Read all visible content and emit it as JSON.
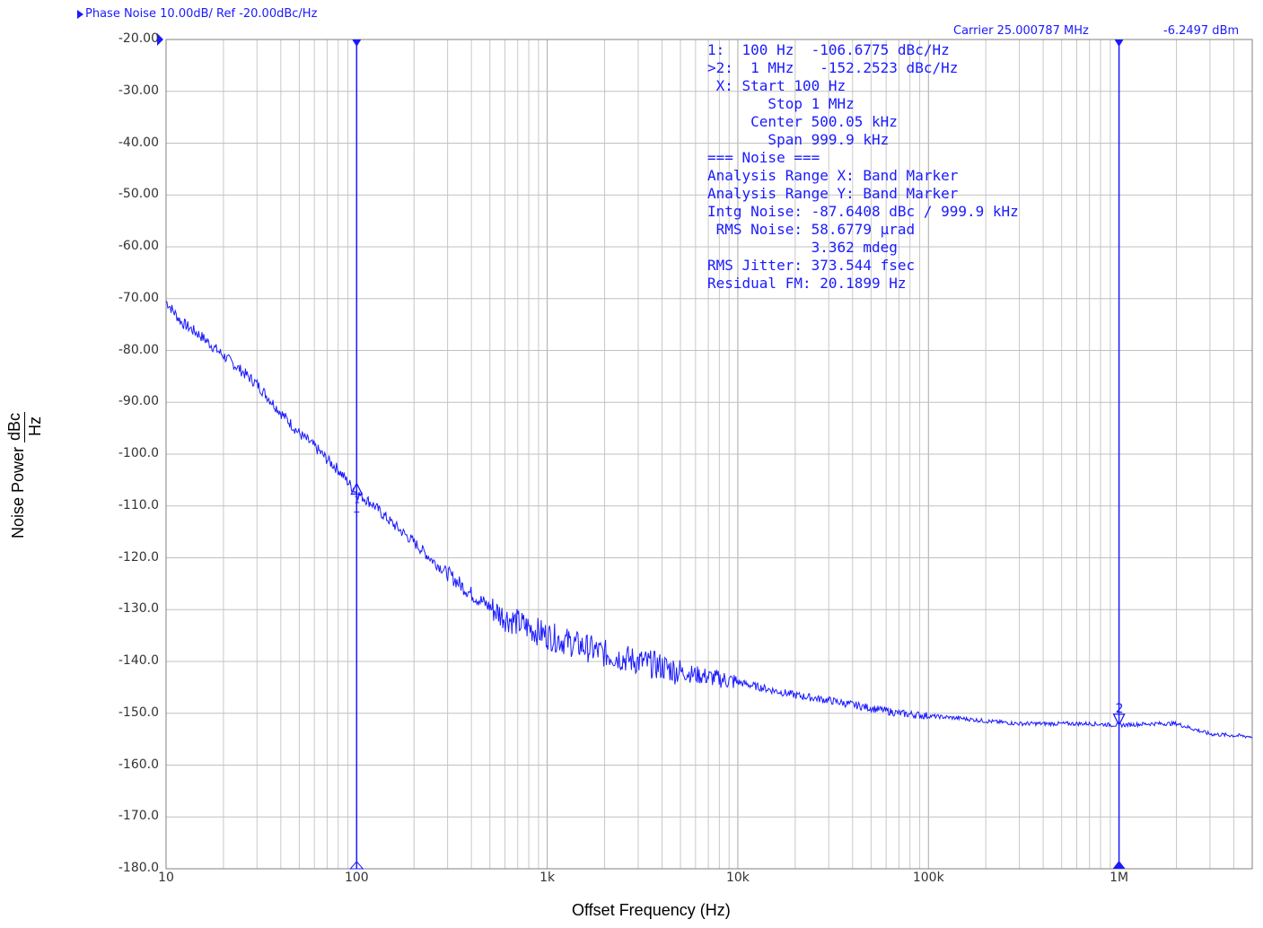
{
  "header": {
    "trace_label": "Phase Noise 10.00dB/ Ref -20.00dBc/Hz",
    "carrier": "Carrier 25.000787 MHz",
    "carrier_power": "-6.2497 dBm"
  },
  "annotations": [
    "1:  100 Hz  -106.6775 dBc/Hz",
    ">2:  1 MHz   -152.2523 dBc/Hz",
    " X: Start 100 Hz",
    "       Stop 1 MHz",
    "     Center 500.05 kHz",
    "       Span 999.9 kHz",
    "=== Noise ===",
    "Analysis Range X: Band Marker",
    "Analysis Range Y: Band Marker",
    "Intg Noise: -87.6408 dBc / 999.9 kHz",
    " RMS Noise: 58.6779 µrad",
    "            3.362 mdeg",
    "RMS Jitter: 373.544 fsec",
    "Residual FM: 20.1899 Hz"
  ],
  "chart_data": {
    "type": "line",
    "xscale": "log",
    "xlim": [
      10,
      5000000
    ],
    "ylim": [
      -180,
      -20
    ],
    "xlabel": "Offset Frequency (Hz)",
    "ylabel_main": "Noise Power",
    "ylabel_unit_num": "dBc",
    "ylabel_unit_den": "Hz",
    "y_tick_labels": [
      "-20.00",
      "-30.00",
      "-40.00",
      "-50.00",
      "-60.00",
      "-70.00",
      "-80.00",
      "-90.00",
      "-100.0",
      "-110.0",
      "-120.0",
      "-130.0",
      "-140.0",
      "-150.0",
      "-160.0",
      "-170.0",
      "-180.0"
    ],
    "x_ticks": [
      {
        "value": 10,
        "label": "10"
      },
      {
        "value": 100,
        "label": "100"
      },
      {
        "value": 1000,
        "label": "1k"
      },
      {
        "value": 10000,
        "label": "10k"
      },
      {
        "value": 100000,
        "label": "100k"
      },
      {
        "value": 1000000,
        "label": "1M"
      }
    ],
    "grid": true,
    "series": [
      {
        "color": "#1a1aff",
        "x": [
          10,
          12,
          15,
          20,
          25,
          30,
          40,
          50,
          60,
          70,
          80,
          100,
          120,
          150,
          200,
          250,
          300,
          400,
          500,
          600,
          700,
          800,
          1000,
          1500,
          2000,
          3000,
          4000,
          5000,
          7000,
          10000,
          15000,
          20000,
          30000,
          50000,
          70000,
          100000,
          150000,
          200000,
          300000,
          500000,
          700000,
          1000000,
          1500000,
          2000000,
          3000000,
          5000000
        ],
        "y": [
          -70.5,
          -74.5,
          -77,
          -81,
          -84,
          -86.5,
          -92,
          -96,
          -98.5,
          -101,
          -103,
          -107.5,
          -109.5,
          -113,
          -117,
          -120.5,
          -123,
          -127,
          -129.5,
          -131.5,
          -132.5,
          -133.5,
          -135,
          -137,
          -138.5,
          -140,
          -141,
          -142,
          -143,
          -144,
          -145.5,
          -146.5,
          -147.5,
          -149,
          -150,
          -150.5,
          -151,
          -151.5,
          -152,
          -152,
          -152,
          -152.3,
          -152,
          -152,
          -154,
          -154.5
        ]
      }
    ],
    "markers": [
      {
        "id": "1",
        "x": 100,
        "y": -106.6775,
        "label": "1"
      },
      {
        "id": "2",
        "x": 1000000,
        "y": -152.2523,
        "label": "2"
      }
    ]
  }
}
